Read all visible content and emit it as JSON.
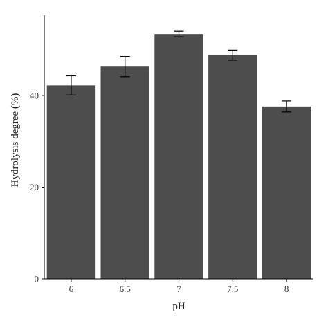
{
  "chart_data": {
    "type": "bar",
    "xlabel": "pH",
    "ylabel": "Hydrolysis degree (%)",
    "categories": [
      "6",
      "6.5",
      "7",
      "7.5",
      "8"
    ],
    "values": [
      42.2,
      46.3,
      53.4,
      48.8,
      37.6
    ],
    "errors": [
      2.1,
      2.2,
      0.6,
      1.1,
      1.2
    ],
    "ylim": [
      0,
      57.5
    ],
    "yticks": [
      0,
      20,
      40
    ],
    "ytick_labels": [
      "0",
      "20",
      "40"
    ],
    "grid": false,
    "bar_color": "#4d4d4d",
    "error_color": "#000000"
  }
}
